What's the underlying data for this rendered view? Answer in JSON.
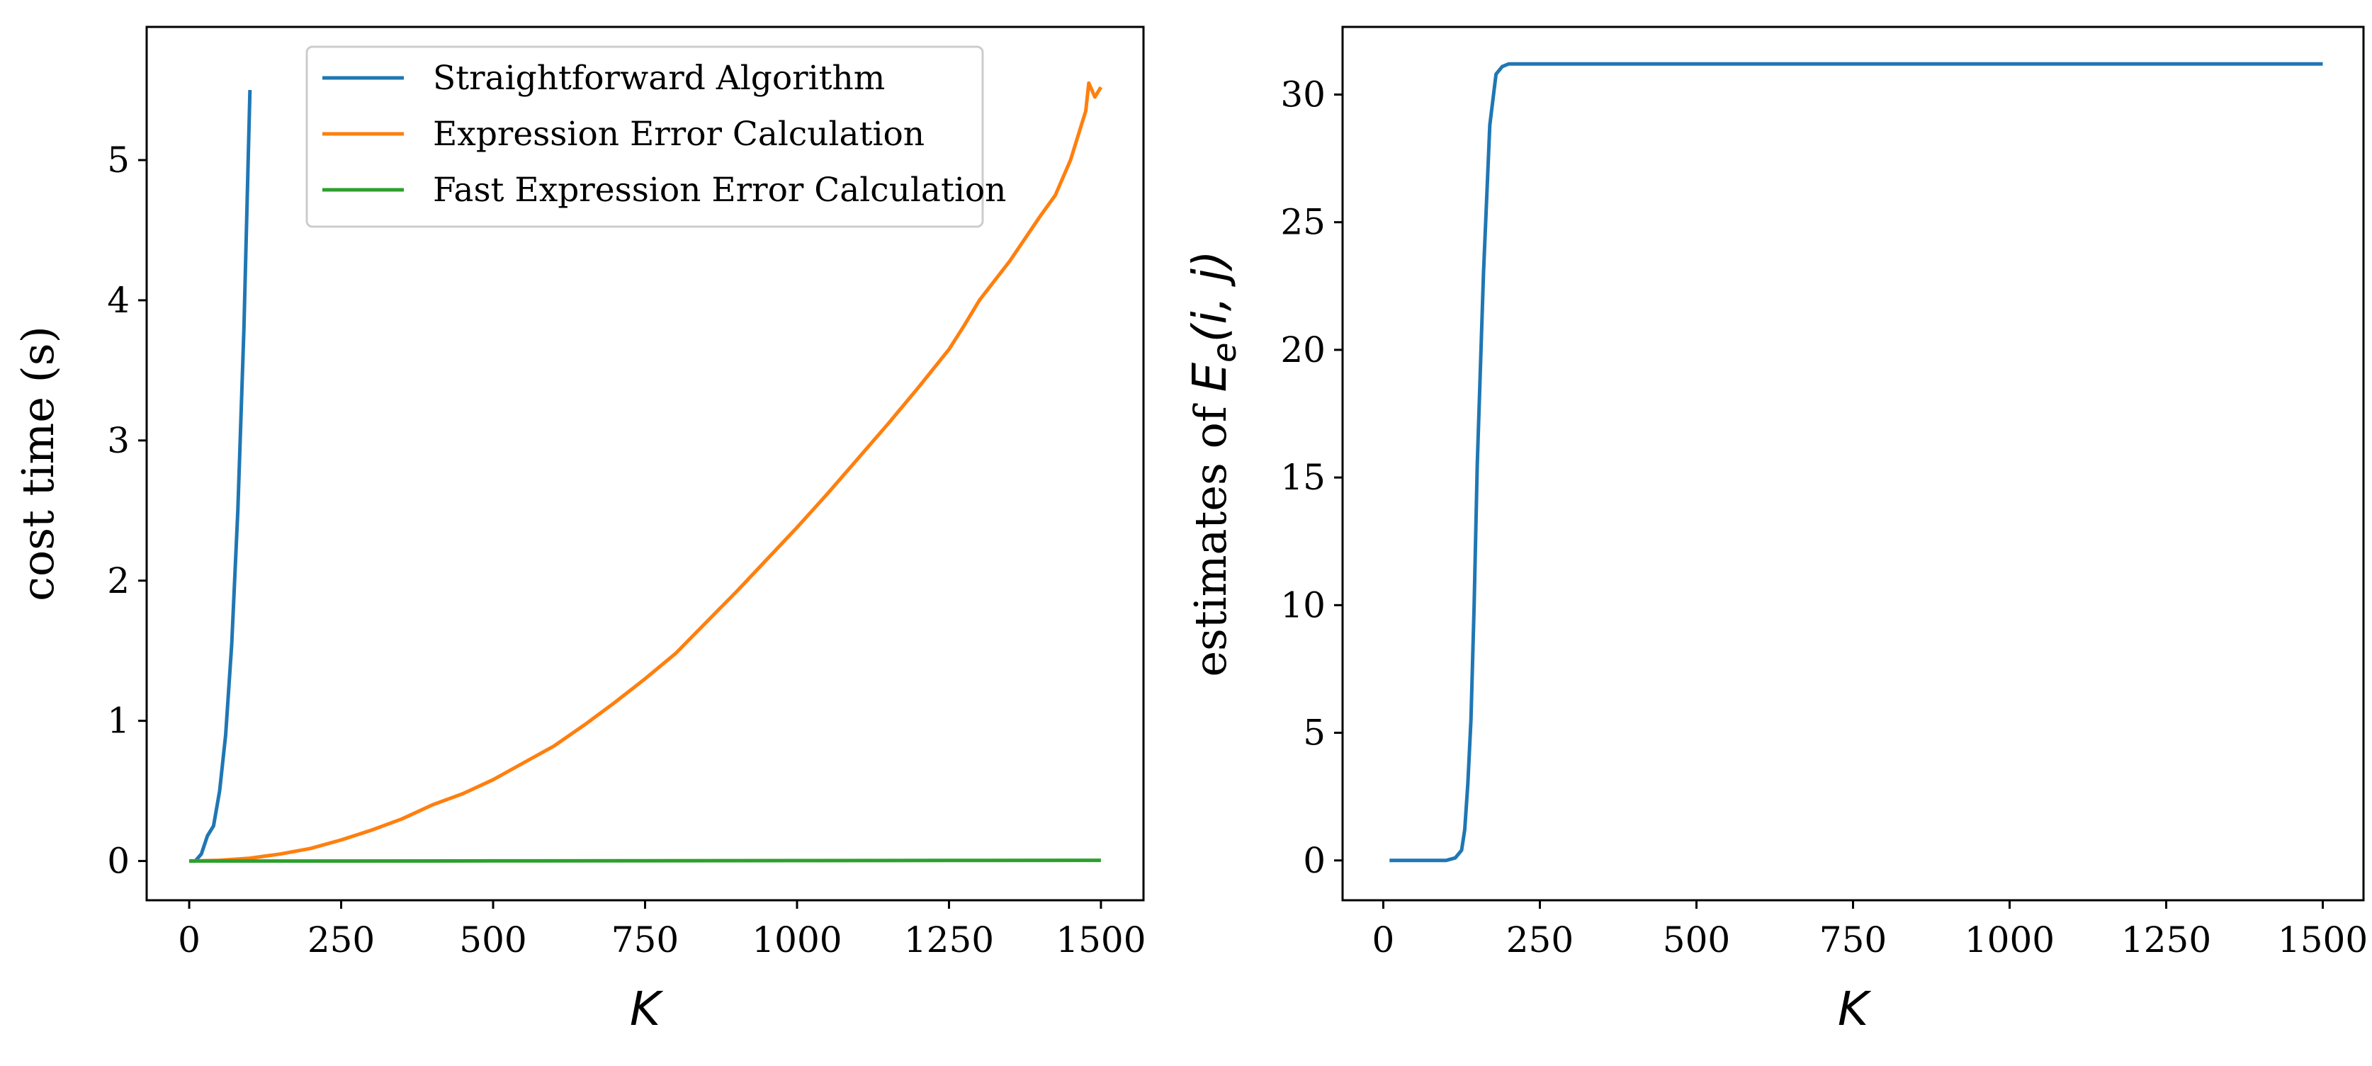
{
  "chart_data": [
    {
      "type": "line",
      "title": "",
      "xlabel": "K",
      "ylabel": "cost time (s)",
      "xlim": [
        -70,
        1570
      ],
      "ylim": [
        -0.28,
        5.95
      ],
      "xticks": [
        0,
        250,
        500,
        750,
        1000,
        1250,
        1500
      ],
      "yticks": [
        0,
        1,
        2,
        3,
        4,
        5
      ],
      "grid": false,
      "legend_position": "top-center",
      "series": [
        {
          "name": "Straightforward Algorithm",
          "color": "#1f77b4",
          "x": [
            0,
            10,
            20,
            30,
            40,
            50,
            60,
            70,
            80,
            90,
            100
          ],
          "y": [
            0.0,
            0.0,
            0.05,
            0.18,
            0.25,
            0.5,
            0.9,
            1.55,
            2.5,
            3.8,
            5.5
          ]
        },
        {
          "name": "Expression Error Calculation",
          "color": "#ff7f0e",
          "x": [
            0,
            50,
            100,
            150,
            200,
            250,
            300,
            350,
            400,
            450,
            500,
            550,
            600,
            650,
            700,
            750,
            800,
            850,
            900,
            950,
            1000,
            1050,
            1100,
            1150,
            1200,
            1250,
            1275,
            1300,
            1350,
            1400,
            1425,
            1450,
            1475,
            1480,
            1490,
            1500
          ],
          "y": [
            0.0,
            0.005,
            0.02,
            0.05,
            0.09,
            0.15,
            0.22,
            0.3,
            0.4,
            0.48,
            0.58,
            0.7,
            0.82,
            0.97,
            1.13,
            1.3,
            1.48,
            1.7,
            1.92,
            2.15,
            2.38,
            2.62,
            2.87,
            3.12,
            3.38,
            3.65,
            3.82,
            4.0,
            4.28,
            4.6,
            4.75,
            5.0,
            5.35,
            5.55,
            5.45,
            5.52
          ]
        },
        {
          "name": "Fast Expression Error Calculation",
          "color": "#2ca02c",
          "x": [
            0,
            250,
            500,
            750,
            1000,
            1250,
            1500
          ],
          "y": [
            0.0,
            0.0,
            0.001,
            0.002,
            0.003,
            0.004,
            0.005
          ]
        }
      ]
    },
    {
      "type": "line",
      "title": "",
      "xlabel": "K",
      "ylabel_prefix": "estimates of ",
      "ylabel_math": "E",
      "ylabel_sub": "e",
      "ylabel_suffix": "(i, j)",
      "xlim": [
        -65,
        1565
      ],
      "ylim": [
        -1.56,
        32.65
      ],
      "xticks": [
        0,
        250,
        500,
        750,
        1000,
        1250,
        1500
      ],
      "yticks": [
        0,
        5,
        10,
        15,
        20,
        25,
        30
      ],
      "grid": false,
      "series": [
        {
          "name": "estimates",
          "color": "#1f77b4",
          "x": [
            10,
            50,
            100,
            115,
            125,
            130,
            135,
            140,
            145,
            150,
            160,
            170,
            180,
            190,
            200,
            250,
            500,
            750,
            1000,
            1250,
            1500
          ],
          "y": [
            0,
            0,
            0,
            0.1,
            0.4,
            1.2,
            3.0,
            5.5,
            10.0,
            15.5,
            23.0,
            28.8,
            30.8,
            31.1,
            31.2,
            31.2,
            31.2,
            31.2,
            31.2,
            31.2,
            31.2
          ]
        }
      ]
    }
  ]
}
